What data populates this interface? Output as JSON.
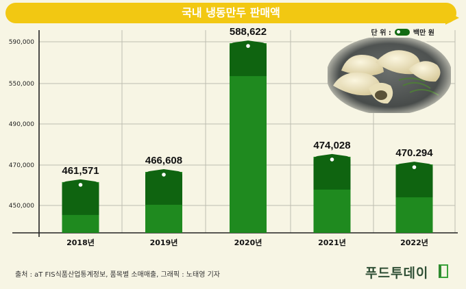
{
  "title": "국내 냉동만두 판매액",
  "legend": {
    "prefix": "단 위 :",
    "label": "백만 원"
  },
  "chart_data": {
    "type": "bar",
    "title": "국내 냉동만두 판매액",
    "unit": "백만 원",
    "categories": [
      "2018년",
      "2019년",
      "2020년",
      "2021년",
      "2022년"
    ],
    "values": [
      461571,
      466608,
      588622,
      474028,
      470294
    ],
    "value_labels": [
      "461,571",
      "466,608",
      "588,622",
      "474,028",
      "470.294"
    ],
    "y_ticks": [
      "590,000",
      "550,000",
      "490,000",
      "470,000",
      "450,000"
    ],
    "y_axis_note": "broken (non-linear) value axis",
    "grid": true,
    "legend_position": "top-right",
    "colors": {
      "bar": "#1f8a1f",
      "bar_cap": "#0f6410",
      "title_bg": "#f2c812"
    }
  },
  "footer": "출처 :  aT FIS식품산업통계정보, 품목별 소매매출, 그래픽 : 노태영 기자",
  "brand": "푸드투데이"
}
